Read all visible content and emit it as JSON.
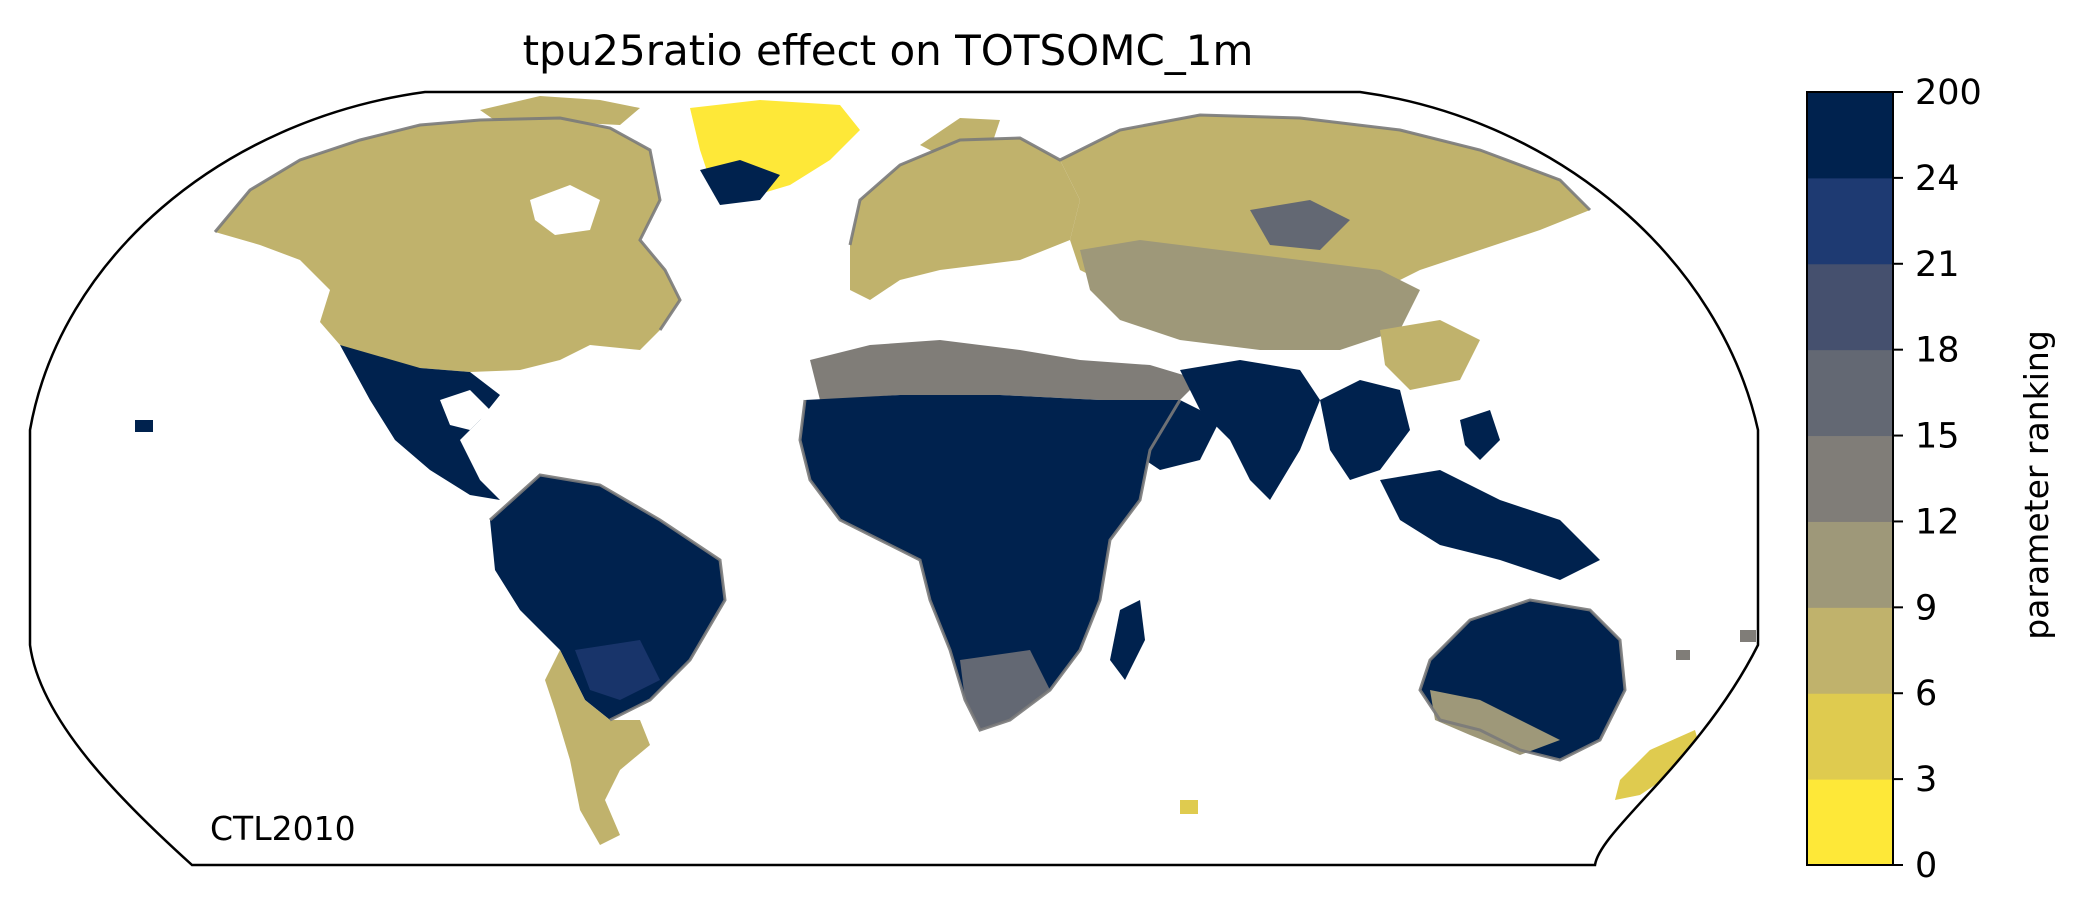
{
  "title": "tpu25ratio effect on TOTSOMC_1m",
  "annotation": "CTL2010",
  "projection": "robinson",
  "colorbar": {
    "label": "parameter ranking",
    "ticks": [
      "0",
      "3",
      "6",
      "9",
      "12",
      "15",
      "18",
      "21",
      "24",
      "200"
    ],
    "colors": [
      "#fee838",
      "#dfcb4f",
      "#c0b26c",
      "#9e9879",
      "#807d78",
      "#636873",
      "#45506e",
      "#1e3a72",
      "#00224e"
    ]
  },
  "legend_classes": [
    {
      "range": "0-3",
      "color": "#fee838"
    },
    {
      "range": "3-6",
      "color": "#dfcb4f"
    },
    {
      "range": "6-9",
      "color": "#c0b26c"
    },
    {
      "range": "9-12",
      "color": "#9e9879"
    },
    {
      "range": "12-15",
      "color": "#807d78"
    },
    {
      "range": "15-18",
      "color": "#636873"
    },
    {
      "range": "18-21",
      "color": "#45506e"
    },
    {
      "range": "21-24",
      "color": "#1e3a72"
    },
    {
      "range": "24-200",
      "color": "#00224e"
    }
  ],
  "regions": {
    "north_america": "6-9",
    "greenland": "0-3",
    "central_america": "24-200",
    "south_america": "24-200",
    "patagonia": "6-9",
    "europe": "6-9",
    "siberia": "6-9",
    "central_asia": "9-12",
    "sahara": "24-200",
    "africa": "24-200",
    "south_asia": "24-200",
    "southeast_asia": "24-200",
    "australia": "24-200",
    "new_zealand": "3-6"
  }
}
